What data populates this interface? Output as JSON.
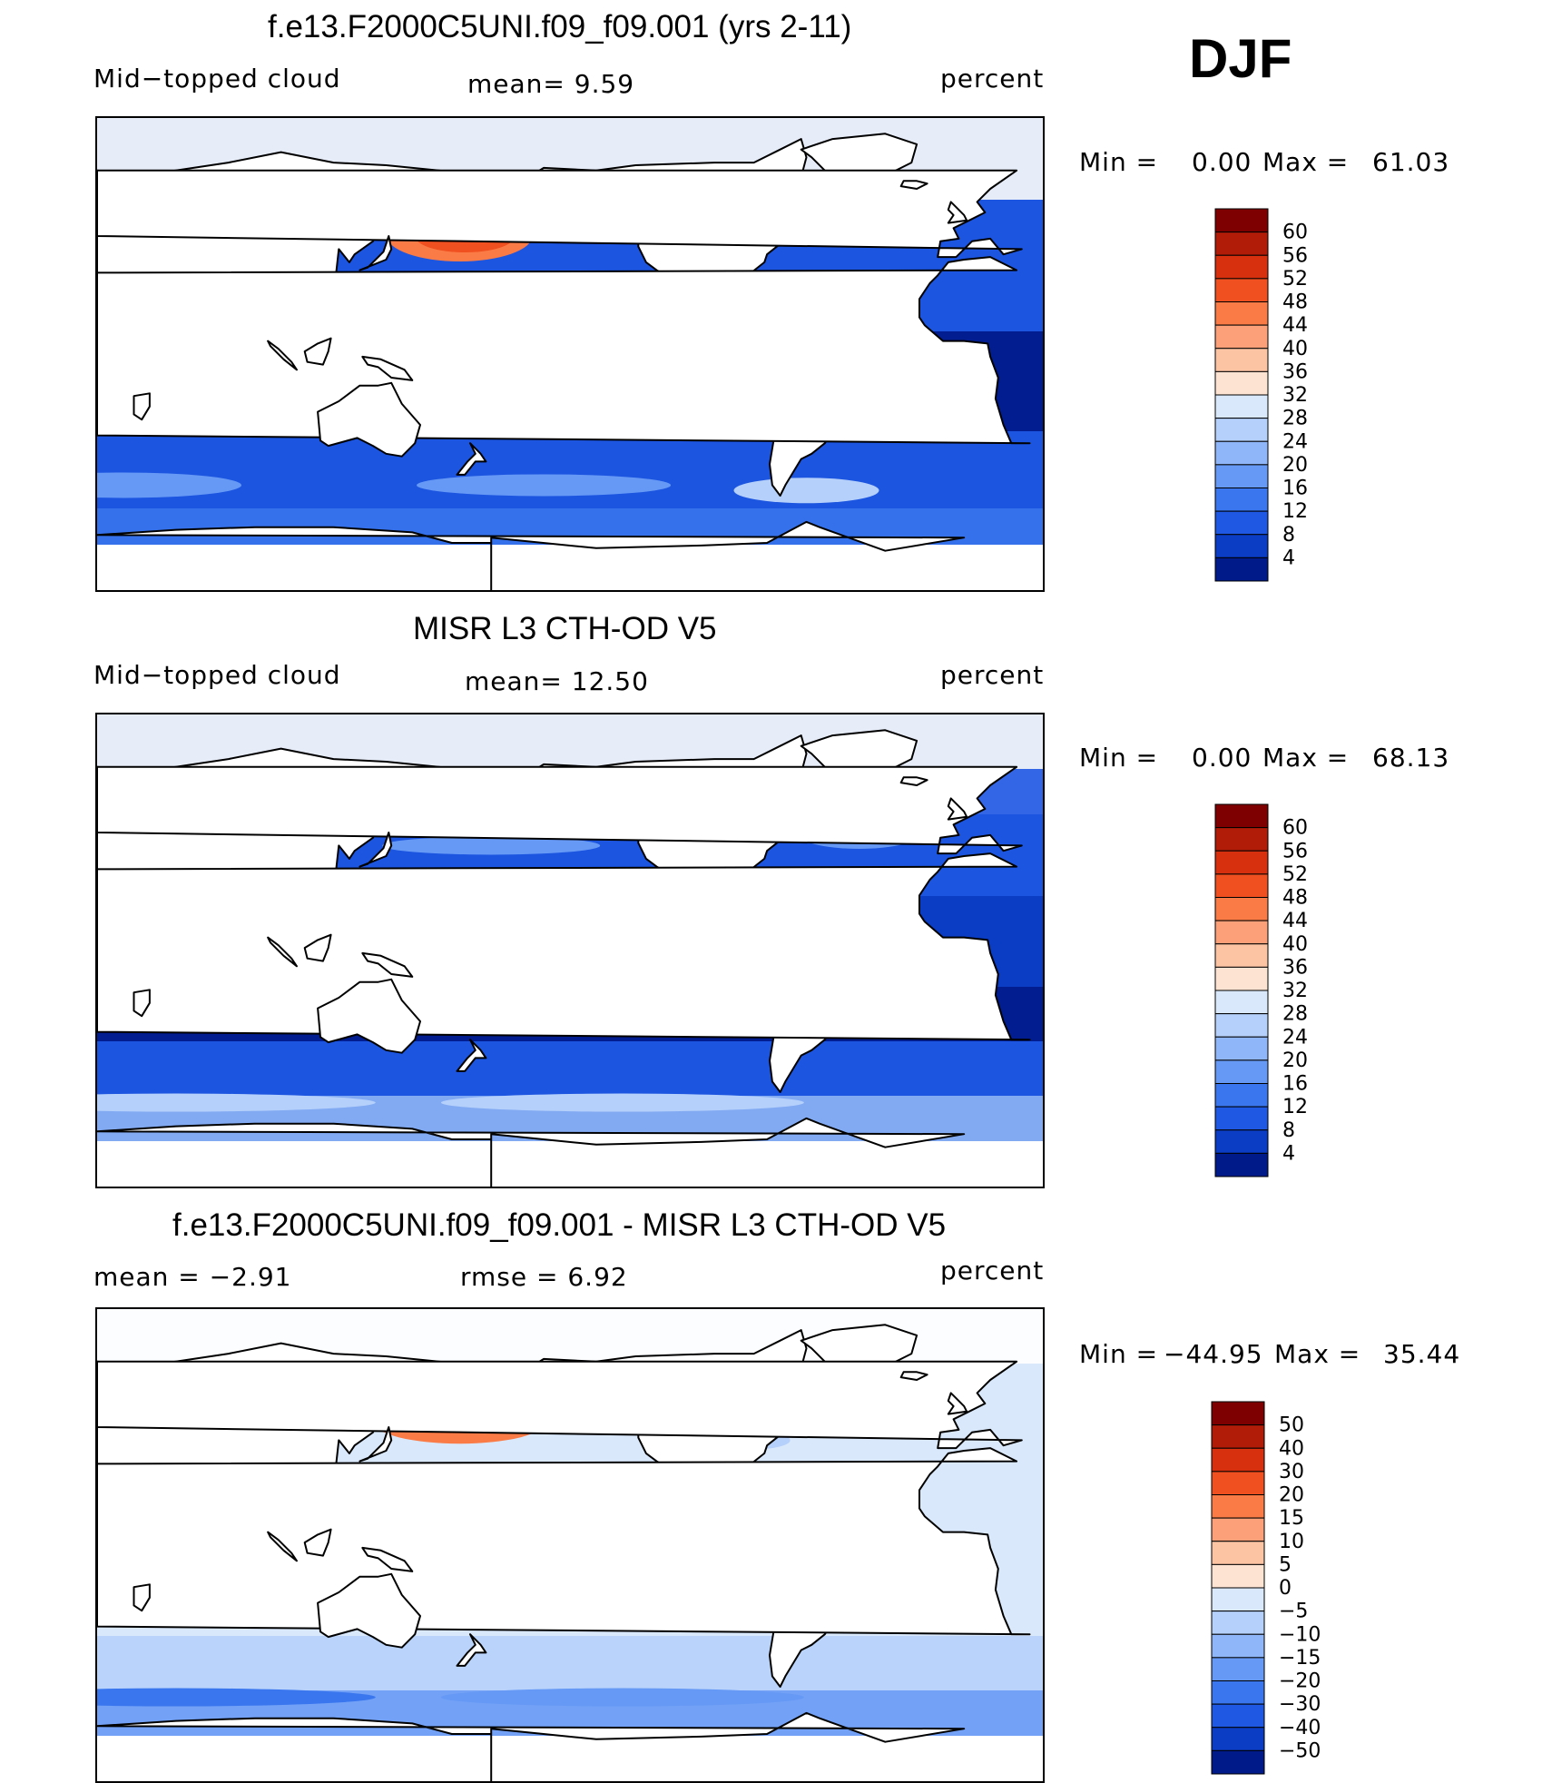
{
  "season": "DJF",
  "panels": [
    {
      "title": "f.e13.F2000C5UNI.f09_f09.001 (yrs 2-11)",
      "left_label": "Mid−topped  cloud",
      "center_label": "mean=     9.59",
      "right_label": "percent",
      "min_label": "Min  =",
      "min_value": "0.00",
      "max_label": "Max  =",
      "max_value": "61.03",
      "colorbar": {
        "levels": [
          "60",
          "56",
          "52",
          "48",
          "44",
          "40",
          "36",
          "32",
          "28",
          "24",
          "20",
          "16",
          "12",
          "8",
          "4"
        ],
        "colors": [
          "#7f0000",
          "#b01c08",
          "#d7300f",
          "#f04f1f",
          "#fa7b45",
          "#fca07a",
          "#fdc4a4",
          "#fde4d2",
          "#d9e8fb",
          "#b5d0fa",
          "#8fb6f8",
          "#6699f5",
          "#3a77ef",
          "#1e58e3",
          "#0a3cc4",
          "#001a8a"
        ]
      },
      "map": {
        "style": "model"
      }
    },
    {
      "title": "MISR L3 CTH-OD V5",
      "left_label": "Mid−topped  cloud",
      "center_label": "mean=   12.50",
      "right_label": "percent",
      "min_label": "Min  =",
      "min_value": "0.00",
      "max_label": "Max  =",
      "max_value": "68.13",
      "colorbar": {
        "levels": [
          "60",
          "56",
          "52",
          "48",
          "44",
          "40",
          "36",
          "32",
          "28",
          "24",
          "20",
          "16",
          "12",
          "8",
          "4"
        ],
        "colors": [
          "#7f0000",
          "#b01c08",
          "#d7300f",
          "#f04f1f",
          "#fa7b45",
          "#fca07a",
          "#fdc4a4",
          "#fde4d2",
          "#d9e8fb",
          "#b5d0fa",
          "#8fb6f8",
          "#6699f5",
          "#3a77ef",
          "#1e58e3",
          "#0a3cc4",
          "#001a8a"
        ]
      },
      "map": {
        "style": "obs"
      }
    },
    {
      "title": "f.e13.F2000C5UNI.f09_f09.001 - MISR L3 CTH-OD V5",
      "left_label": "mean  =     −2.91",
      "center_label": "rmse  =      6.92",
      "right_label": "percent",
      "min_label": "Min  =",
      "min_value": "−44.95",
      "max_label": "Max  =",
      "max_value": "35.44",
      "colorbar": {
        "levels": [
          "50",
          "40",
          "30",
          "20",
          "15",
          "10",
          "5",
          "0",
          "−5",
          "−10",
          "−15",
          "−20",
          "−30",
          "−40",
          "−50"
        ],
        "colors": [
          "#7f0000",
          "#b01c08",
          "#d7300f",
          "#f04f1f",
          "#fa7b45",
          "#fca07a",
          "#fdc4a4",
          "#fde4d2",
          "#d9e8fb",
          "#b5d0fa",
          "#8fb6f8",
          "#6699f5",
          "#3a77ef",
          "#1e58e3",
          "#0a3cc4",
          "#001a8a"
        ]
      },
      "map": {
        "style": "diff"
      }
    }
  ]
}
